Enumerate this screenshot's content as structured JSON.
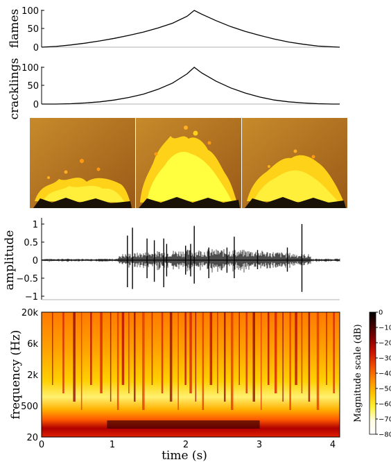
{
  "chart_data": [
    {
      "type": "line",
      "ylabel": "flames",
      "ylim": [
        0,
        100
      ],
      "yticks": [
        "0",
        "50",
        "100"
      ],
      "xlim": [
        0,
        4.1
      ],
      "series": [
        {
          "x": [
            0,
            0.2,
            0.4,
            0.6,
            0.8,
            1.0,
            1.2,
            1.4,
            1.6,
            1.8,
            2.0,
            2.1,
            2.2,
            2.4,
            2.6,
            2.8,
            3.0,
            3.2,
            3.4,
            3.6,
            3.8,
            4.0,
            4.1
          ],
          "values": [
            0,
            2,
            6,
            11,
            17,
            24,
            32,
            41,
            52,
            65,
            84,
            100,
            90,
            72,
            56,
            43,
            32,
            22,
            14,
            8,
            3,
            1,
            0
          ]
        }
      ]
    },
    {
      "type": "line",
      "ylabel": "cracklings",
      "ylim": [
        0,
        100
      ],
      "yticks": [
        "0",
        "50",
        "100"
      ],
      "xlim": [
        0,
        4.1
      ],
      "series": [
        {
          "x": [
            0,
            0.2,
            0.4,
            0.6,
            0.8,
            1.0,
            1.2,
            1.4,
            1.6,
            1.8,
            2.0,
            2.1,
            2.2,
            2.4,
            2.6,
            2.8,
            3.0,
            3.2,
            3.4,
            3.6,
            3.8,
            4.0,
            4.1
          ],
          "values": [
            0,
            0,
            1,
            3,
            6,
            11,
            18,
            27,
            40,
            57,
            82,
            100,
            85,
            62,
            44,
            30,
            19,
            11,
            6,
            3,
            1,
            0,
            0
          ]
        }
      ]
    },
    {
      "type": "line",
      "ylabel": "amplitude",
      "ylim": [
        -1.1,
        1.1
      ],
      "yticks": [
        "1",
        "0.5",
        "0",
        "−0.5",
        "−1"
      ],
      "xlim": [
        0,
        4.1
      ],
      "spikes": [
        {
          "x": 1.18,
          "values": [
            0.68,
            -0.75
          ]
        },
        {
          "x": 1.25,
          "values": [
            0.9,
            -0.8
          ]
        },
        {
          "x": 1.45,
          "values": [
            0.6,
            -0.5
          ]
        },
        {
          "x": 1.55,
          "values": [
            0.55,
            -0.6
          ]
        },
        {
          "x": 1.68,
          "values": [
            0.6,
            -0.75
          ]
        },
        {
          "x": 1.72,
          "values": [
            0.45,
            -0.45
          ]
        },
        {
          "x": 1.98,
          "values": [
            0.4,
            -0.4
          ]
        },
        {
          "x": 2.05,
          "values": [
            0.45,
            -0.45
          ]
        },
        {
          "x": 2.1,
          "values": [
            0.95,
            -0.65
          ]
        },
        {
          "x": 2.3,
          "values": [
            0.35,
            -0.5
          ]
        },
        {
          "x": 2.55,
          "values": [
            0.35,
            -0.35
          ]
        },
        {
          "x": 2.65,
          "values": [
            0.65,
            -0.5
          ]
        },
        {
          "x": 2.97,
          "values": [
            0.28,
            -0.25
          ]
        },
        {
          "x": 3.38,
          "values": [
            0.35,
            -0.32
          ]
        },
        {
          "x": 3.58,
          "values": [
            1.0,
            -0.88
          ]
        }
      ]
    },
    {
      "type": "heatmap",
      "xlabel": "time (s)",
      "ylabel": "frequency (Hz)",
      "xticks": [
        "0",
        "1",
        "2",
        "3",
        "4"
      ],
      "yticks": [
        "20k",
        "6k",
        "2k",
        "500",
        "20"
      ],
      "xlim": [
        0,
        4.1
      ],
      "colorbar": {
        "label": "Magnitude scale (dB)",
        "ticks": [
          "0",
          "−10",
          "−20",
          "−30",
          "−40",
          "−50",
          "−60",
          "−70",
          "−80"
        ],
        "colors": [
          "#000000",
          "#400000",
          "#8a0000",
          "#cc1500",
          "#f04d00",
          "#ff8c00",
          "#ffc400",
          "#fff23a",
          "#fffde0",
          "#ffffff"
        ]
      },
      "stripe_times": [
        0.15,
        0.3,
        0.45,
        0.55,
        0.68,
        0.82,
        0.95,
        1.05,
        1.12,
        1.2,
        1.28,
        1.4,
        1.52,
        1.66,
        1.78,
        1.88,
        1.98,
        2.05,
        2.12,
        2.22,
        2.33,
        2.42,
        2.52,
        2.62,
        2.72,
        2.82,
        2.92,
        3.02,
        3.12,
        3.22,
        3.32,
        3.42,
        3.5,
        3.58,
        3.68,
        3.8,
        3.92,
        4.02
      ]
    }
  ]
}
